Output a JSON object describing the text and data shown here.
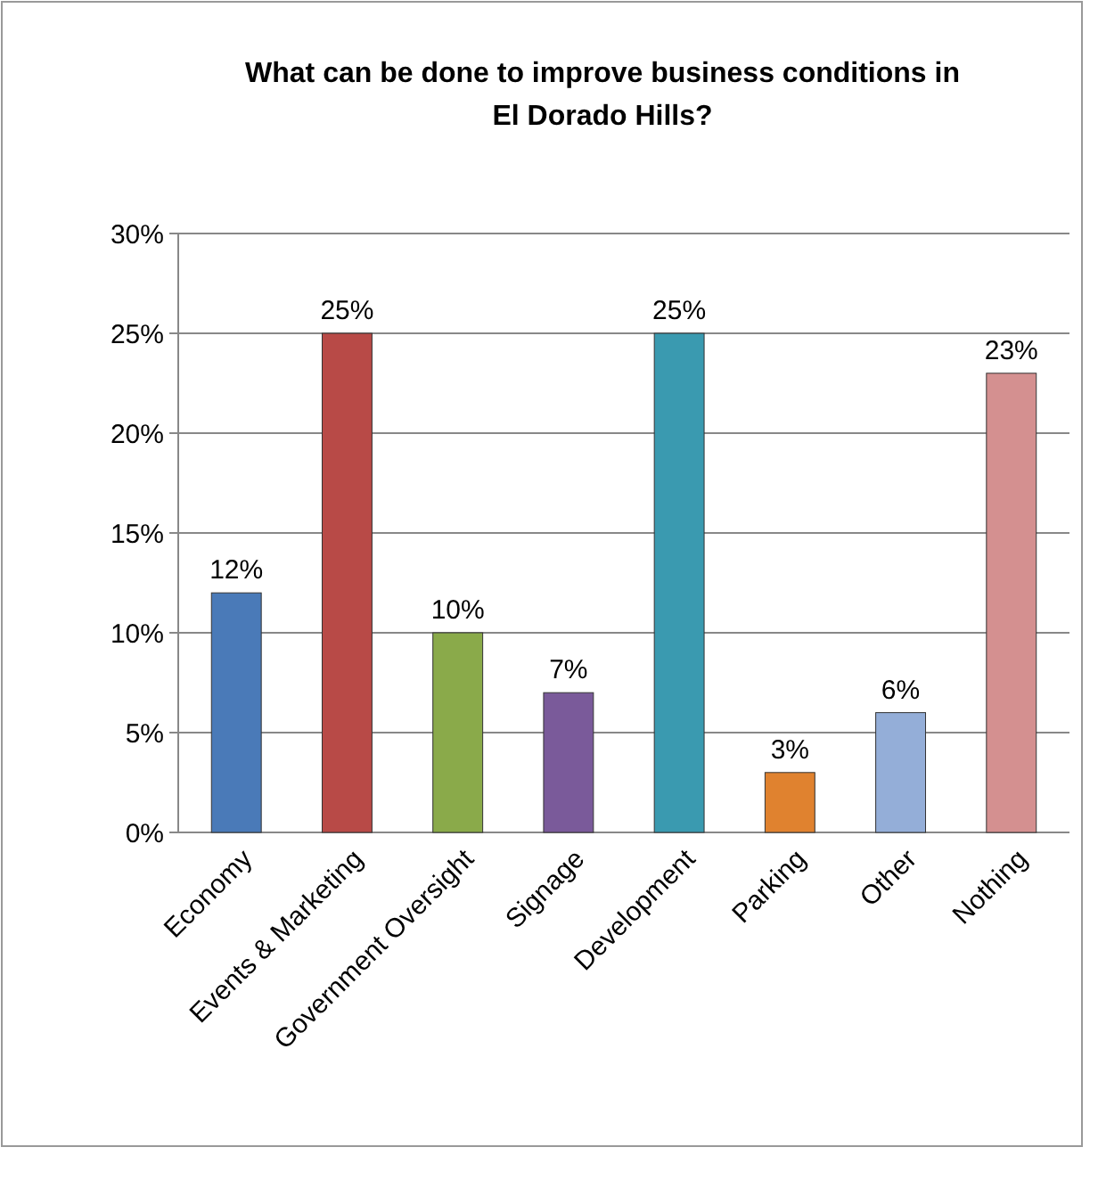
{
  "chart_data": {
    "type": "bar",
    "title": "What can be done to improve business conditions in El Dorado Hills?",
    "categories": [
      "Economy",
      "Events & Marketing",
      "Government Oversight",
      "Signage",
      "Development",
      "Parking",
      "Other",
      "Nothing"
    ],
    "values": [
      12,
      25,
      10,
      7,
      25,
      3,
      6,
      23
    ],
    "colors": [
      "#4a7ab8",
      "#b84a47",
      "#8aaa4a",
      "#7a5a9a",
      "#3a9ab0",
      "#e0822f",
      "#94aed8",
      "#d49090"
    ],
    "ylim": [
      0,
      30
    ],
    "yticks": [
      {
        "value": 0,
        "label": "0%"
      },
      {
        "value": 5,
        "label": "5%"
      },
      {
        "value": 10,
        "label": "10%"
      },
      {
        "value": 15,
        "label": "15%"
      },
      {
        "value": 20,
        "label": "20%"
      },
      {
        "value": 25,
        "label": "25%"
      },
      {
        "value": 30,
        "label": "30%"
      }
    ],
    "value_labels": [
      "12%",
      "25%",
      "10%",
      "7%",
      "25%",
      "3%",
      "6%",
      "23%"
    ],
    "grid": "y"
  }
}
